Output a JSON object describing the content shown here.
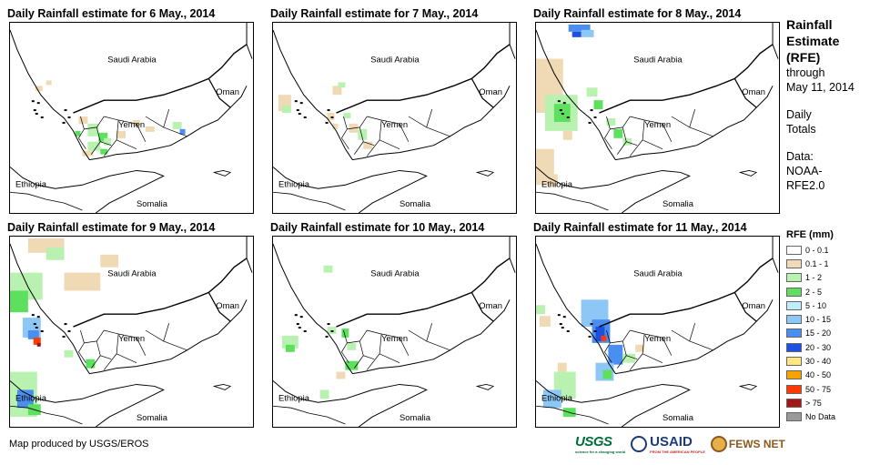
{
  "panels": [
    {
      "title": "Daily Rainfall estimate for 6 May., 2014",
      "pattern": "p6"
    },
    {
      "title": "Daily Rainfall estimate for 7 May., 2014",
      "pattern": "p7"
    },
    {
      "title": "Daily Rainfall estimate for 8 May., 2014",
      "pattern": "p8"
    },
    {
      "title": "Daily Rainfall estimate for 9 May., 2014",
      "pattern": "p9"
    },
    {
      "title": "Daily Rainfall estimate for 10 May., 2014",
      "pattern": "p10"
    },
    {
      "title": "Daily Rainfall estimate for 11 May., 2014",
      "pattern": "p11"
    }
  ],
  "map_labels": {
    "saudi": "Saudi Arabia",
    "oman": "Oman",
    "yemen": "Yemen",
    "ethiopia": "Ethiopia",
    "somalia": "Somalia"
  },
  "side": {
    "title_line1": "Rainfall",
    "title_line2": "Estimate",
    "title_line3": "(RFE)",
    "through": "through",
    "date": "May 11, 2014",
    "daily": "Daily",
    "totals": "Totals",
    "data_label": "Data:",
    "data_src1": "NOAA-",
    "data_src2": "RFE2.0"
  },
  "legend": {
    "title": "RFE (mm)",
    "items": [
      {
        "label": "0 - 0.1",
        "color": "#ffffff"
      },
      {
        "label": "0.1 - 1",
        "color": "#f0d9b5"
      },
      {
        "label": "1 - 2",
        "color": "#b9f2b0"
      },
      {
        "label": "2 - 5",
        "color": "#5de05d"
      },
      {
        "label": "5 - 10",
        "color": "#bfeefa"
      },
      {
        "label": "10 - 15",
        "color": "#8cc7f5"
      },
      {
        "label": "15 - 20",
        "color": "#4a8ff0"
      },
      {
        "label": "20 - 30",
        "color": "#1d4fe0"
      },
      {
        "label": "30 - 40",
        "color": "#ffe680"
      },
      {
        "label": "40 - 50",
        "color": "#f5a300"
      },
      {
        "label": "50 - 75",
        "color": "#ff3a00"
      },
      {
        "label": "> 75",
        "color": "#a51515"
      },
      {
        "label": "No Data",
        "color": "#999999"
      }
    ]
  },
  "credit": "Map produced by USGS/EROS",
  "logos": {
    "usgs": "USGS",
    "usgs_tag": "science for a changing world",
    "usaid": "USAID",
    "usaid_tag": "FROM THE AMERICAN PEOPLE",
    "fews": "FEWS NET"
  }
}
